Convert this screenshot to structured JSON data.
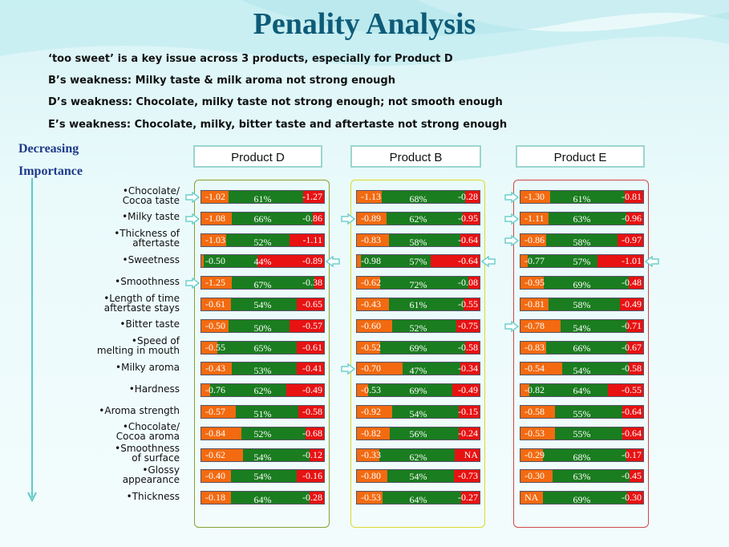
{
  "title": "Penality Analysis",
  "bullets": [
    "‘too sweet’ is a key issue across 3 products,  especially for Product  D",
    "B’s weakness: Milky taste & milk aroma not strong enough",
    "D’s weakness: Chocolate, milky taste not strong enough; not smooth enough",
    "E’s weakness:  Chocolate, milky, bitter taste and aftertaste not strong enough"
  ],
  "side_label": {
    "line1": "Decreasing",
    "line2": "Importance"
  },
  "colors": {
    "left": "#f36a10",
    "mid": "#1a7d1f",
    "right": "#e81212",
    "title": "#0e5b78"
  },
  "chart_data": {
    "type": "bar",
    "categories": [
      "•Chocolate/\nCocoa taste",
      "•Milky taste",
      "•Thickness of\naftertaste",
      "•Sweetness",
      "•Smoothness",
      "•Length of time\naftertaste stays",
      "•Bitter taste",
      "•Speed of\nmelting in mouth",
      "•Milky aroma",
      "•Hardness",
      "•Aroma strength",
      "•Chocolate/\nCocoa aroma",
      "•Smoothness\nof surface",
      "•Glossy\nappearance",
      "•Thickness"
    ],
    "products": [
      {
        "name": "Product D",
        "border": "#8aa030",
        "bars": [
          {
            "left": "-1.02",
            "mid": "61%",
            "right": "-1.27",
            "lp": 22,
            "mp": 61,
            "arrow": "left"
          },
          {
            "left": "-1.08",
            "mid": "66%",
            "right": "-0.86",
            "lp": 25,
            "mp": 66,
            "arrow": "left"
          },
          {
            "left": "-1.03",
            "mid": "52%",
            "right": "-1.11",
            "lp": 20,
            "mp": 52
          },
          {
            "left": "-0.50",
            "mid": "44%",
            "right": "-0.89",
            "lp": 2,
            "mp": 44,
            "arrow": "right"
          },
          {
            "left": "-1.25",
            "mid": "67%",
            "right": "-0.38",
            "lp": 25,
            "mp": 67,
            "arrow": "left"
          },
          {
            "left": "-0.61",
            "mid": "54%",
            "right": "-0.65",
            "lp": 24,
            "mp": 54
          },
          {
            "left": "-0.50",
            "mid": "50%",
            "right": "-0.57",
            "lp": 22,
            "mp": 50
          },
          {
            "left": "-0.55",
            "mid": "65%",
            "right": "-0.61",
            "lp": 13,
            "mp": 65
          },
          {
            "left": "-0.43",
            "mid": "53%",
            "right": "-0.41",
            "lp": 25,
            "mp": 53
          },
          {
            "left": "-0.76",
            "mid": "62%",
            "right": "-0.49",
            "lp": 7,
            "mp": 62
          },
          {
            "left": "-0.57",
            "mid": "51%",
            "right": "-0.58",
            "lp": 28,
            "mp": 51
          },
          {
            "left": "-0.84",
            "mid": "52%",
            "right": "-0.68",
            "lp": 33,
            "mp": 52
          },
          {
            "left": "-0.62",
            "mid": "54%",
            "right": "-0.12",
            "lp": 34,
            "mp": 54
          },
          {
            "left": "-0.40",
            "mid": "54%",
            "right": "-0.16",
            "lp": 24,
            "mp": 54
          },
          {
            "left": "-0.18",
            "mid": "64%",
            "right": "-0.28",
            "lp": 24,
            "mp": 64
          }
        ]
      },
      {
        "name": "Product B",
        "border": "#dada30",
        "bars": [
          {
            "left": "-1.13",
            "mid": "68%",
            "right": "-0.28",
            "lp": 20,
            "mp": 68
          },
          {
            "left": "-0.89",
            "mid": "62%",
            "right": "-0.95",
            "lp": 24,
            "mp": 62,
            "arrow": "left"
          },
          {
            "left": "-0.83",
            "mid": "58%",
            "right": "-0.64",
            "lp": 26,
            "mp": 58
          },
          {
            "left": "-0.98",
            "mid": "57%",
            "right": "-0.64",
            "lp": 3,
            "mp": 57,
            "arrow": "right"
          },
          {
            "left": "-0.62",
            "mid": "72%",
            "right": "-0.08",
            "lp": 19,
            "mp": 72
          },
          {
            "left": "-0.43",
            "mid": "61%",
            "right": "-0.55",
            "lp": 26,
            "mp": 61
          },
          {
            "left": "-0.60",
            "mid": "52%",
            "right": "-0.75",
            "lp": 29,
            "mp": 52
          },
          {
            "left": "-0.52",
            "mid": "69%",
            "right": "-0.58",
            "lp": 19,
            "mp": 69
          },
          {
            "left": "-0.70",
            "mid": "47%",
            "right": "-0.34",
            "lp": 37,
            "mp": 47,
            "arrow": "left"
          },
          {
            "left": "-0.53",
            "mid": "69%",
            "right": "-0.49",
            "lp": 9,
            "mp": 69
          },
          {
            "left": "-0.92",
            "mid": "54%",
            "right": "-0.15",
            "lp": 29,
            "mp": 54
          },
          {
            "left": "-0.82",
            "mid": "56%",
            "right": "-0.24",
            "lp": 27,
            "mp": 56
          },
          {
            "left": "-0.33",
            "mid": "62%",
            "right": "NA",
            "lp": 18,
            "mp": 62
          },
          {
            "left": "-0.80",
            "mid": "54%",
            "right": "-0.73",
            "lp": 25,
            "mp": 54
          },
          {
            "left": "-0.53",
            "mid": "64%",
            "right": "-0.27",
            "lp": 21,
            "mp": 64
          }
        ]
      },
      {
        "name": "Product E",
        "border": "#d04848",
        "bars": [
          {
            "left": "-1.30",
            "mid": "61%",
            "right": "-0.81",
            "lp": 24,
            "mp": 61,
            "arrow": "left"
          },
          {
            "left": "-1.11",
            "mid": "63%",
            "right": "-0.96",
            "lp": 23,
            "mp": 63,
            "arrow": "left"
          },
          {
            "left": "-0.86",
            "mid": "58%",
            "right": "-0.97",
            "lp": 21,
            "mp": 58,
            "arrow": "left"
          },
          {
            "left": "-0.77",
            "mid": "57%",
            "right": "-1.01",
            "lp": 6,
            "mp": 57,
            "arrow": "right"
          },
          {
            "left": "-0.95",
            "mid": "69%",
            "right": "-0.48",
            "lp": 19,
            "mp": 69
          },
          {
            "left": "-0.81",
            "mid": "58%",
            "right": "-0.49",
            "lp": 23,
            "mp": 58
          },
          {
            "left": "-0.78",
            "mid": "54%",
            "right": "-0.71",
            "lp": 33,
            "mp": 54,
            "arrow": "left"
          },
          {
            "left": "-0.83",
            "mid": "66%",
            "right": "-0.67",
            "lp": 21,
            "mp": 66
          },
          {
            "left": "-0.54",
            "mid": "54%",
            "right": "-0.58",
            "lp": 34,
            "mp": 54
          },
          {
            "left": "-0.82",
            "mid": "64%",
            "right": "-0.55",
            "lp": 7,
            "mp": 64
          },
          {
            "left": "-0.58",
            "mid": "55%",
            "right": "-0.64",
            "lp": 28,
            "mp": 55
          },
          {
            "left": "-0.53",
            "mid": "55%",
            "right": "-0.64",
            "lp": 28,
            "mp": 55
          },
          {
            "left": "-0.29",
            "mid": "68%",
            "right": "-0.17",
            "lp": 18,
            "mp": 68
          },
          {
            "left": "-0.30",
            "mid": "63%",
            "right": "-0.45",
            "lp": 26,
            "mp": 63
          },
          {
            "left": "NA",
            "mid": "69%",
            "right": "-0.30",
            "lp": 18,
            "mp": 69
          }
        ]
      }
    ]
  }
}
